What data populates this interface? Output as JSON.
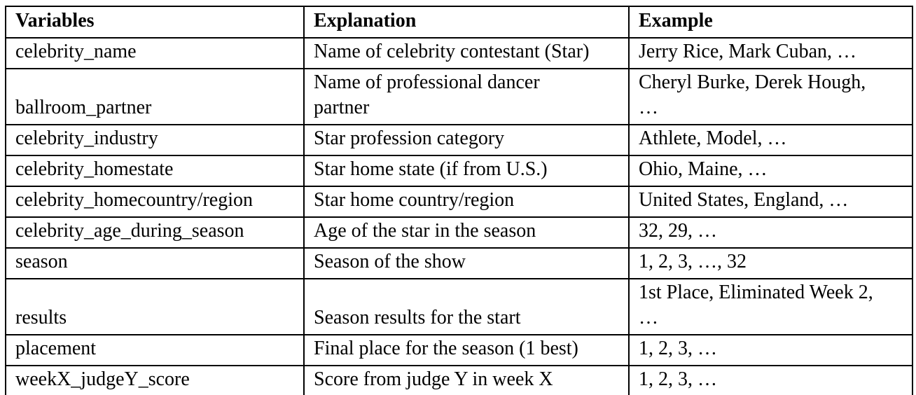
{
  "page": {
    "background_color": "#ffffff",
    "text_color": "#000000",
    "border_color": "#000000"
  },
  "table": {
    "headers": {
      "variables": "Variables",
      "explanation": "Explanation",
      "example": "Example"
    },
    "rows": [
      {
        "variable": "celebrity_name",
        "explanation": "Name of celebrity contestant (Star)",
        "example": "Jerry Rice, Mark Cuban, …"
      },
      {
        "variable": "ballroom_partner",
        "explanation": "Name of professional dancer\npartner",
        "example": "Cheryl Burke, Derek Hough,\n…"
      },
      {
        "variable": "celebrity_industry",
        "explanation": "Star profession category",
        "example": "Athlete, Model, …"
      },
      {
        "variable": "celebrity_homestate",
        "explanation": "Star home state (if from U.S.)",
        "example": "Ohio, Maine, …"
      },
      {
        "variable": "celebrity_homecountry/region",
        "explanation": "Star home country/region",
        "example": "United States, England, …"
      },
      {
        "variable": "celebrity_age_during_season",
        "explanation": "Age of the star in the season",
        "example": "32, 29, …"
      },
      {
        "variable": "season",
        "explanation": "Season of the show",
        "example": "1, 2, 3, …, 32"
      },
      {
        "variable": "results",
        "explanation": "Season results for the start",
        "example": "1st Place, Eliminated Week 2,\n…"
      },
      {
        "variable": "placement",
        "explanation": "Final place for the season (1 best)",
        "example": "1, 2, 3, …"
      },
      {
        "variable": "weekX_judgeY_score",
        "explanation": "Score from judge Y in week X",
        "example": "1, 2, 3, …"
      }
    ]
  }
}
